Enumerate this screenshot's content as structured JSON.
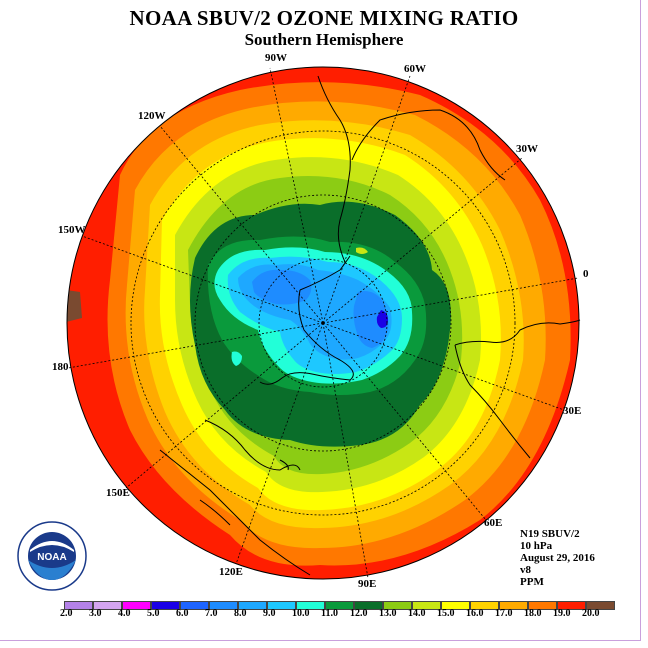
{
  "title": "NOAA SBUV/2 OZONE MIXING RATIO",
  "subtitle": "Southern Hemisphere",
  "longitude_labels": [
    "90W",
    "60W",
    "30W",
    "0",
    "30E",
    "60E",
    "90E",
    "120E",
    "150E",
    "180",
    "150W",
    "120W"
  ],
  "info": {
    "satellite": "N19 SBUV/2",
    "level": "10 hPa",
    "date": "August 29, 2016",
    "version": "v8",
    "units": "PPM"
  },
  "logo": {
    "text": "NOAA",
    "ring_text": "NATIONAL OCEANIC AND ATMOSPHERIC ADMINISTRATION · U.S. DEPARTMENT OF COMMERCE"
  },
  "color_scale": {
    "labels": [
      "2.0",
      "3.0",
      "4.0",
      "5.0",
      "6.0",
      "7.0",
      "8.0",
      "9.0",
      "10.0",
      "11.0",
      "12.0",
      "13.0",
      "14.0",
      "15.0",
      "16.0",
      "17.0",
      "18.0",
      "19.0",
      "20.0"
    ],
    "colors": [
      "#b482e8",
      "#d4a5f0",
      "#ff00ff",
      "#1a00e6",
      "#1e64ff",
      "#1e8cff",
      "#1ea8ff",
      "#1ec8ff",
      "#22ffd8",
      "#0a9a3c",
      "#0a6e2a",
      "#8ccc14",
      "#c8e614",
      "#ffff00",
      "#ffd200",
      "#ffaa00",
      "#ff7800",
      "#ff1e00",
      "#7a4a30"
    ]
  },
  "map_colors": {
    "ring18_19": "#ff1e00",
    "ring17_18": "#ff7800",
    "ring16_17": "#ffaa00",
    "ring15_16": "#ffd200",
    "ring14_15": "#ffff00",
    "ring13_14": "#c8e614",
    "ring12_13": "#8ccc14",
    "ring11_12": "#0a6e2a",
    "ring10_11": "#0a9a3c",
    "ring9_10": "#22ffd8",
    "ring8_9": "#1ec8ff",
    "ring7_8": "#1ea8ff",
    "ring6_7": "#1e8cff",
    "ring5_6": "#1a00e6",
    "brown": "#7a4a30"
  }
}
